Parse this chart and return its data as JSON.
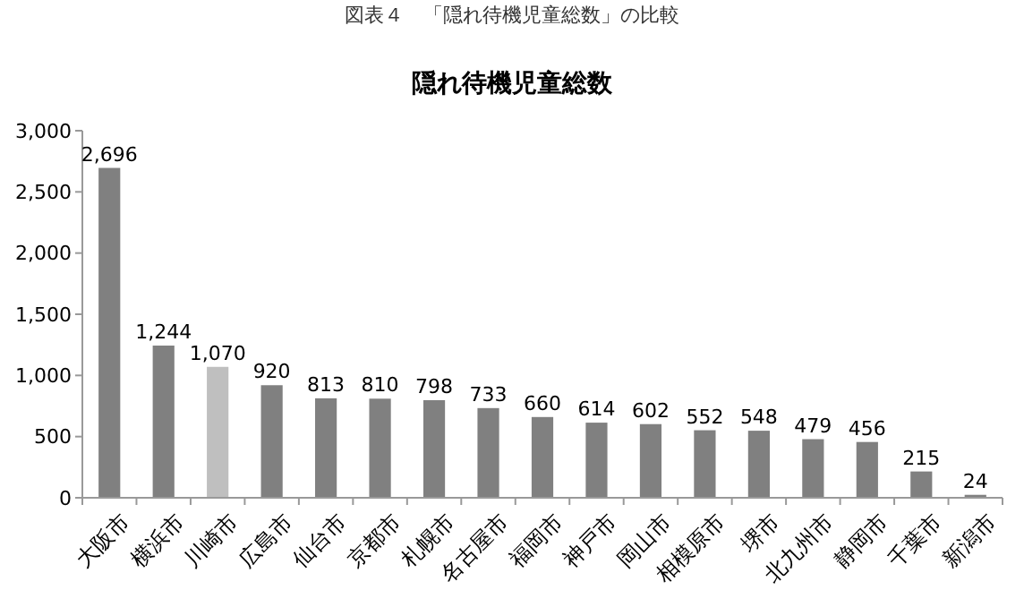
{
  "chart_data": {
    "type": "bar",
    "title": "隠れ待機児童総数",
    "annotations": [
      "図表４　「隠れ待機児童総数」の比較"
    ],
    "categories": [
      "大阪市",
      "横浜市",
      "川崎市",
      "広島市",
      "仙台市",
      "京都市",
      "札幌市",
      "名古屋市",
      "福岡市",
      "神戸市",
      "岡山市",
      "相模原市",
      "堺市",
      "北九州市",
      "静岡市",
      "千葉市",
      "新潟市"
    ],
    "values": [
      2696,
      1244,
      1070,
      920,
      813,
      810,
      798,
      733,
      660,
      614,
      602,
      552,
      548,
      479,
      456,
      215,
      24
    ],
    "colors": [
      "#808080",
      "#808080",
      "#bfbfbf",
      "#808080",
      "#808080",
      "#808080",
      "#808080",
      "#808080",
      "#808080",
      "#808080",
      "#808080",
      "#808080",
      "#808080",
      "#808080",
      "#808080",
      "#808080",
      "#808080"
    ],
    "ylim": [
      0,
      3000
    ],
    "yticks": [
      {
        "value": 0,
        "label": "0"
      },
      {
        "value": 500,
        "label": "500"
      },
      {
        "value": 1000,
        "label": "1,000"
      },
      {
        "value": 1500,
        "label": "1,500"
      },
      {
        "value": 2000,
        "label": "2,000"
      },
      {
        "value": 2500,
        "label": "2,500"
      },
      {
        "value": 3000,
        "label": "3,000"
      }
    ],
    "value_labels": [
      "2,696",
      "1,244",
      "1,070",
      "920",
      "813",
      "810",
      "798",
      "733",
      "660",
      "614",
      "602",
      "552",
      "548",
      "479",
      "456",
      "215",
      "24"
    ],
    "grid": false
  }
}
